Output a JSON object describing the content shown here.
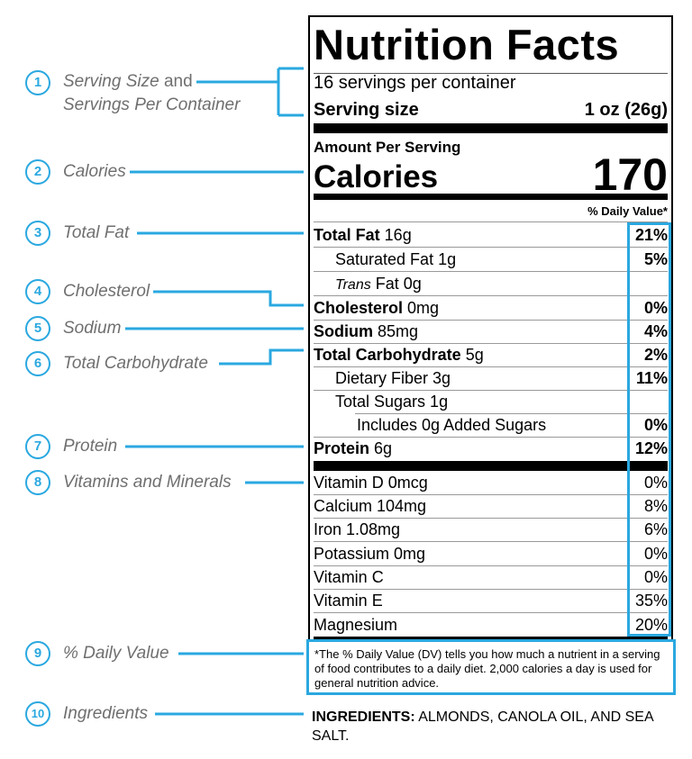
{
  "annotations": [
    {
      "num": "1",
      "label_html": "Serving Size and Servings Per Container",
      "line1": "Serving Size",
      "line1b": " and",
      "line2": "Servings Per Container"
    },
    {
      "num": "2",
      "line1": "Calories"
    },
    {
      "num": "3",
      "line1": "Total Fat"
    },
    {
      "num": "4",
      "line1": "Cholesterol"
    },
    {
      "num": "5",
      "line1": "Sodium"
    },
    {
      "num": "6",
      "line1": "Total Carbohydrate"
    },
    {
      "num": "7",
      "line1": "Protein"
    },
    {
      "num": "8",
      "line1": "Vitamins and Minerals"
    },
    {
      "num": "9",
      "line1": "% Daily Value"
    },
    {
      "num": "10",
      "line1": "Ingredients"
    }
  ],
  "label": {
    "title": "Nutrition Facts",
    "servings_per_container": "16 servings per container",
    "serving_size_label": "Serving size",
    "serving_size_value": "1 oz (26g)",
    "amount_per_serving": "Amount Per Serving",
    "calories_label": "Calories",
    "calories_value": "170",
    "dv_header": "% Daily Value*"
  },
  "nutrients": [
    {
      "name": "Total Fat",
      "amount": " 16g",
      "dv": "21%"
    },
    {
      "name": "Saturated Fat 1g",
      "amount": "",
      "dv": "5%"
    },
    {
      "name": "Trans",
      "amount": " Fat 0g",
      "dv": ""
    },
    {
      "name": "Cholesterol",
      "amount": " 0mg",
      "dv": "0%"
    },
    {
      "name": "Sodium",
      "amount": " 85mg",
      "dv": "4%"
    },
    {
      "name": "Total Carbohydrate",
      "amount": " 5g",
      "dv": "2%"
    },
    {
      "name": "Dietary Fiber 3g",
      "amount": "",
      "dv": "11%"
    },
    {
      "name": "Total Sugars 1g",
      "amount": "",
      "dv": ""
    },
    {
      "name": "Includes 0g Added Sugars",
      "amount": "",
      "dv": "0%"
    },
    {
      "name": "Protein",
      "amount": " 6g",
      "dv": "12%"
    }
  ],
  "vitamins": [
    {
      "name": "Vitamin D 0mcg",
      "dv": "0%"
    },
    {
      "name": "Calcium 104mg",
      "dv": "8%"
    },
    {
      "name": "Iron 1.08mg",
      "dv": "6%"
    },
    {
      "name": "Potassium 0mg",
      "dv": "0%"
    },
    {
      "name": "Vitamin C",
      "dv": "0%"
    },
    {
      "name": "Vitamin E",
      "dv": "35%"
    },
    {
      "name": "Magnesium",
      "dv": "20%"
    }
  ],
  "footnote": "*The % Daily Value (DV) tells you how much a nutrient in a serving of food contributes to a daily diet. 2,000 calories a day is used for general nutrition advice.",
  "ingredients_label": "INGREDIENTS:",
  "ingredients_text": " ALMONDS, CANOLA OIL, AND SEA SALT.",
  "colors": {
    "accent": "#2aa8e0",
    "annotation_text": "#6f6f6f"
  }
}
